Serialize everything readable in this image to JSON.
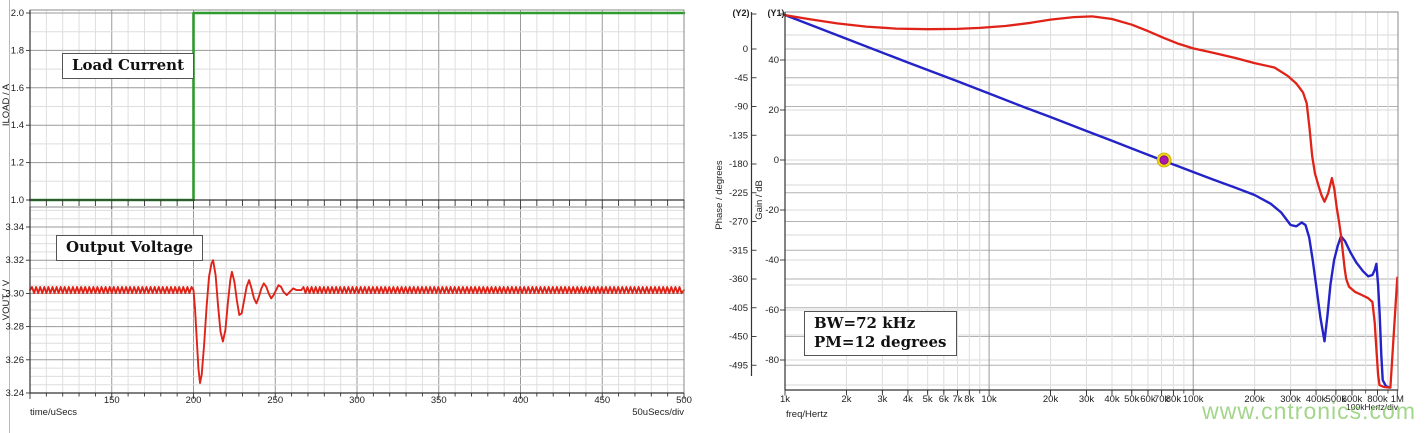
{
  "watermark": {
    "text": "www.cntronics.com",
    "color": "#8ccc6e"
  },
  "chart_data": [
    {
      "type": "line",
      "name": "transient-load-step",
      "x_axis": {
        "label": "time/uSecs",
        "per_div": "50uSecs/div",
        "min": 100,
        "max": 500,
        "minor_step": 10,
        "major_step": 50,
        "tick_labels": [
          {
            "v": 150,
            "l": "150"
          },
          {
            "v": 200,
            "l": "200"
          },
          {
            "v": 250,
            "l": "250"
          },
          {
            "v": 300,
            "l": "300"
          },
          {
            "v": 350,
            "l": "350"
          },
          {
            "v": 400,
            "l": "400"
          },
          {
            "v": 450,
            "l": "450"
          },
          {
            "v": 500,
            "l": "500"
          }
        ]
      },
      "panels": [
        {
          "title": "Load Current",
          "y_axis": {
            "label": "ILOAD / A",
            "min": 1.0,
            "max": 2.0,
            "minor_step": 0.1,
            "major_step": 0.2,
            "ticks": [
              {
                "v": 1.0,
                "l": "1.0"
              },
              {
                "v": 1.2,
                "l": "1.2"
              },
              {
                "v": 1.4,
                "l": "1.4"
              },
              {
                "v": 1.6,
                "l": "1.6"
              },
              {
                "v": 1.8,
                "l": "1.8"
              },
              {
                "v": 2.0,
                "l": "2.0"
              }
            ]
          },
          "series": [
            {
              "name": "ILOAD",
              "color": "#2e9b2e",
              "width": 2.6,
              "points": [
                [
                  100,
                  1.0
                ],
                [
                  200,
                  1.0
                ],
                [
                  200,
                  2.0
                ],
                [
                  500,
                  2.0
                ]
              ]
            }
          ]
        },
        {
          "title": "Output Voltage",
          "y_axis": {
            "label": "VOUT / V",
            "min": 3.24,
            "max": 3.34,
            "minor_step": 0.005,
            "major_step": 0.02,
            "ticks": [
              {
                "v": 3.24,
                "l": "3.24"
              },
              {
                "v": 3.26,
                "l": "3.26"
              },
              {
                "v": 3.28,
                "l": "3.28"
              },
              {
                "v": 3.3,
                "l": "3.30"
              },
              {
                "v": 3.32,
                "l": "3.32"
              },
              {
                "v": 3.34,
                "l": "3.34"
              }
            ]
          },
          "series": [
            {
              "name": "VOUT",
              "color": "#e02318",
              "width": 1.9,
              "ripple": {
                "base": 3.302,
                "amplitude": 0.002,
                "half_period_us": 1.25,
                "regions": [
                  [
                    100,
                    200
                  ],
                  [
                    266,
                    500
                  ]
                ]
              },
              "points": [
                [
                  200,
                  3.302
                ],
                [
                  201,
                  3.29
                ],
                [
                  202,
                  3.272
                ],
                [
                  203,
                  3.255
                ],
                [
                  204,
                  3.246
                ],
                [
                  205,
                  3.251
                ],
                [
                  206.5,
                  3.269
                ],
                [
                  208,
                  3.292
                ],
                [
                  209.5,
                  3.31
                ],
                [
                  211,
                  3.318
                ],
                [
                  212,
                  3.32
                ],
                [
                  213.5,
                  3.311
                ],
                [
                  215,
                  3.293
                ],
                [
                  216.5,
                  3.277
                ],
                [
                  218,
                  3.271
                ],
                [
                  219.5,
                  3.278
                ],
                [
                  221,
                  3.294
                ],
                [
                  222.5,
                  3.308
                ],
                [
                  223.5,
                  3.313
                ],
                [
                  225,
                  3.307
                ],
                [
                  226.5,
                  3.296
                ],
                [
                  228,
                  3.287
                ],
                [
                  229.5,
                  3.288
                ],
                [
                  231,
                  3.296
                ],
                [
                  232.5,
                  3.304
                ],
                [
                  234,
                  3.308
                ],
                [
                  235.5,
                  3.303
                ],
                [
                  237,
                  3.297
                ],
                [
                  238.5,
                  3.294
                ],
                [
                  240,
                  3.298
                ],
                [
                  241.5,
                  3.303
                ],
                [
                  243,
                  3.306
                ],
                [
                  244.5,
                  3.304
                ],
                [
                  246,
                  3.3
                ],
                [
                  247.5,
                  3.297
                ],
                [
                  249,
                  3.299
                ],
                [
                  250.5,
                  3.302
                ],
                [
                  252,
                  3.305
                ],
                [
                  253.5,
                  3.304
                ],
                [
                  255,
                  3.301
                ],
                [
                  257,
                  3.299
                ],
                [
                  259,
                  3.301
                ],
                [
                  261,
                  3.303
                ],
                [
                  263,
                  3.302
                ],
                [
                  266,
                  3.302
                ]
              ]
            }
          ]
        }
      ]
    },
    {
      "type": "line",
      "name": "loop-gain-bode",
      "x_axis": {
        "label": "freq/Hertz",
        "per_div": "100kHertz/div",
        "scale": "log",
        "min": 1000,
        "max": 1000000,
        "tick_labels": [
          {
            "v": 1000,
            "l": "1k"
          },
          {
            "v": 2000,
            "l": "2k"
          },
          {
            "v": 3000,
            "l": "3k"
          },
          {
            "v": 4000,
            "l": "4k"
          },
          {
            "v": 5000,
            "l": "5k"
          },
          {
            "v": 6000,
            "l": "6k"
          },
          {
            "v": 7000,
            "l": "7k"
          },
          {
            "v": 8000,
            "l": "8k"
          },
          {
            "v": 10000,
            "l": "10k"
          },
          {
            "v": 20000,
            "l": "20k"
          },
          {
            "v": 30000,
            "l": "30k"
          },
          {
            "v": 40000,
            "l": "40k"
          },
          {
            "v": 50000,
            "l": "50k"
          },
          {
            "v": 60000,
            "l": "60k"
          },
          {
            "v": 70000,
            "l": "70k"
          },
          {
            "v": 80000,
            "l": "80k"
          },
          {
            "v": 100000,
            "l": "100k"
          },
          {
            "v": 200000,
            "l": "200k"
          },
          {
            "v": 300000,
            "l": "300k"
          },
          {
            "v": 400000,
            "l": "400k"
          },
          {
            "v": 500000,
            "l": "500k"
          },
          {
            "v": 600000,
            "l": "600k"
          },
          {
            "v": 800000,
            "l": "800k"
          },
          {
            "v": 1000000,
            "l": "1M"
          }
        ]
      },
      "y1_axis": {
        "tag": "(Y1)",
        "label": "Gain / dB",
        "minor_step": 10,
        "ticks": [
          {
            "v": 40,
            "l": "40"
          },
          {
            "v": 20,
            "l": "20"
          },
          {
            "v": 0,
            "l": "0"
          },
          {
            "v": -20,
            "l": "-20"
          },
          {
            "v": -40,
            "l": "-40"
          },
          {
            "v": -60,
            "l": "-60"
          },
          {
            "v": -80,
            "l": "-80"
          }
        ]
      },
      "y2_axis": {
        "tag": "(Y2)",
        "label": "Phase / degrees",
        "step": 45,
        "ticks": [
          {
            "v": 0,
            "l": "0"
          },
          {
            "v": -45,
            "l": "-45"
          },
          {
            "v": -90,
            "l": "-90"
          },
          {
            "v": -135,
            "l": "-135"
          },
          {
            "v": -180,
            "l": "-180"
          },
          {
            "v": -225,
            "l": "-225"
          },
          {
            "v": -270,
            "l": "-270"
          },
          {
            "v": -315,
            "l": "-315"
          },
          {
            "v": -360,
            "l": "-360"
          },
          {
            "v": -405,
            "l": "-405"
          },
          {
            "v": -450,
            "l": "-450"
          },
          {
            "v": -495,
            "l": "-495"
          }
        ]
      },
      "series": [
        {
          "name": "Gain",
          "axis": "y1",
          "color": "#2323c8",
          "width": 2.4,
          "points": [
            [
              1000,
              58
            ],
            [
              2000,
              48.5
            ],
            [
              4000,
              39
            ],
            [
              7000,
              31.5
            ],
            [
              10000,
              26.6
            ],
            [
              15000,
              21
            ],
            [
              20000,
              17.2
            ],
            [
              30000,
              11.6
            ],
            [
              40000,
              7.7
            ],
            [
              50000,
              4.6
            ],
            [
              60000,
              2.1
            ],
            [
              72000,
              -0.4
            ],
            [
              85000,
              -2.6
            ],
            [
              100000,
              -4.8
            ],
            [
              125000,
              -7.8
            ],
            [
              160000,
              -11
            ],
            [
              200000,
              -14
            ],
            [
              240000,
              -17.5
            ],
            [
              270000,
              -21
            ],
            [
              300000,
              -26
            ],
            [
              320000,
              -26.5
            ],
            [
              340000,
              -25
            ],
            [
              355000,
              -26
            ],
            [
              370000,
              -31
            ],
            [
              385000,
              -40
            ],
            [
              400000,
              -50
            ],
            [
              420000,
              -63
            ],
            [
              440000,
              -72.5
            ],
            [
              455000,
              -62
            ],
            [
              470000,
              -50
            ],
            [
              490000,
              -40
            ],
            [
              510000,
              -34.5
            ],
            [
              530000,
              -30.5
            ],
            [
              555000,
              -32.5
            ],
            [
              590000,
              -37
            ],
            [
              630000,
              -41
            ],
            [
              680000,
              -44.5
            ],
            [
              720000,
              -46.5
            ],
            [
              755000,
              -46
            ],
            [
              775000,
              -44
            ],
            [
              790000,
              -41.5
            ],
            [
              805000,
              -50
            ],
            [
              820000,
              -62
            ],
            [
              835000,
              -78
            ],
            [
              848000,
              -88
            ],
            [
              880000,
              -90.5
            ],
            [
              915000,
              -91
            ]
          ]
        },
        {
          "name": "Phase",
          "axis": "y2",
          "color": "#e02318",
          "width": 2.3,
          "points": [
            [
              1000,
              53
            ],
            [
              1300,
              47
            ],
            [
              1800,
              40
            ],
            [
              2500,
              35
            ],
            [
              3500,
              32
            ],
            [
              5000,
              31
            ],
            [
              7000,
              31.5
            ],
            [
              9000,
              33
            ],
            [
              12000,
              36
            ],
            [
              16000,
              41
            ],
            [
              20000,
              46
            ],
            [
              26000,
              50
            ],
            [
              32000,
              51
            ],
            [
              40000,
              47
            ],
            [
              50000,
              38
            ],
            [
              60000,
              28
            ],
            [
              72000,
              17
            ],
            [
              85000,
              8
            ],
            [
              100000,
              1
            ],
            [
              125000,
              -6
            ],
            [
              160000,
              -14
            ],
            [
              200000,
              -22
            ],
            [
              250000,
              -29
            ],
            [
              290000,
              -42
            ],
            [
              320000,
              -54
            ],
            [
              345000,
              -68
            ],
            [
              360000,
              -85
            ],
            [
              372000,
              -125
            ],
            [
              383000,
              -168
            ],
            [
              395000,
              -195
            ],
            [
              410000,
              -213
            ],
            [
              425000,
              -229
            ],
            [
              440000,
              -239
            ],
            [
              458000,
              -226
            ],
            [
              478000,
              -202
            ],
            [
              492000,
              -220
            ],
            [
              505000,
              -248
            ],
            [
              518000,
              -270
            ],
            [
              530000,
              -292
            ],
            [
              542000,
              -320
            ],
            [
              552000,
              -343
            ],
            [
              562000,
              -360
            ],
            [
              580000,
              -372
            ],
            [
              620000,
              -380
            ],
            [
              670000,
              -385
            ],
            [
              720000,
              -390
            ],
            [
              755000,
              -396
            ],
            [
              775000,
              -428
            ],
            [
              790000,
              -470
            ],
            [
              805000,
              -510
            ],
            [
              818000,
              -526
            ],
            [
              860000,
              -529
            ],
            [
              925000,
              -530
            ],
            [
              1000000,
              -358
            ]
          ]
        }
      ],
      "marker": {
        "freq": 72000,
        "gain_db": 0,
        "fill": "#ad17ad",
        "ring": "#f0d418"
      },
      "annotation": {
        "line1": "BW=72 kHz",
        "line2": "PM=12 degrees"
      }
    }
  ]
}
